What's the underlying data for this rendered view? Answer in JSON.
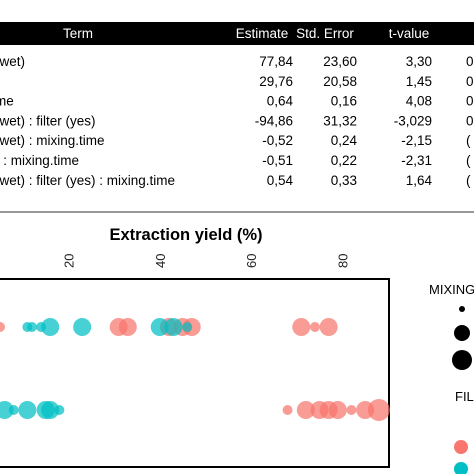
{
  "table": {
    "headers": [
      "Term",
      "Estimate",
      "Std. Error",
      "t-value",
      ""
    ],
    "rows": [
      {
        "term": "(wet)",
        "estimate": "77,84",
        "std_error": "23,60",
        "t_value": "3,30",
        "p": "0"
      },
      {
        "term": ")",
        "estimate": "29,76",
        "std_error": "20,58",
        "t_value": "1,45",
        "p": "0"
      },
      {
        "term": "me",
        "estimate": "0,64",
        "std_error": "0,16",
        "t_value": "4,08",
        "p": "0"
      },
      {
        "term": "(wet) : filter (yes)",
        "estimate": "-94,86",
        "std_error": "31,32",
        "t_value": "-3,029",
        "p": "0"
      },
      {
        "term": "(wet) : mixing.time",
        "estimate": "-0,52",
        "std_error": "0,24",
        "t_value": "-2,15",
        "p": "("
      },
      {
        "term": ") : mixing.time",
        "estimate": "-0,51",
        "std_error": "0,22",
        "t_value": "-2,31",
        "p": "("
      },
      {
        "term": "(wet) : filter (yes) : mixing.time",
        "estimate": "0,54",
        "std_error": "0,33",
        "t_value": "1,64",
        "p": "("
      }
    ]
  },
  "legend": {
    "mixing_title": "MIXING",
    "filter_title": "FIL"
  },
  "colors": {
    "salmon": "#F8766D",
    "teal": "#00BFC4",
    "header_bg": "#000000"
  },
  "chart_data": {
    "type": "scatter",
    "title": "",
    "xlabel": "Extraction yield (%)",
    "ylabel": "",
    "xlim": [
      5,
      90
    ],
    "xticks": [
      "20",
      "40",
      "60",
      "80"
    ],
    "legend_position": "right",
    "series": [
      {
        "color_key": "salmon",
        "points": [
          {
            "x": 5,
            "row": 1,
            "size": 1
          },
          {
            "x": 31,
            "row": 1,
            "size": 2
          },
          {
            "x": 33,
            "row": 1,
            "size": 2
          },
          {
            "x": 42,
            "row": 1,
            "size": 2
          },
          {
            "x": 45,
            "row": 1,
            "size": 2
          },
          {
            "x": 47,
            "row": 1,
            "size": 2
          },
          {
            "x": 71,
            "row": 1,
            "size": 2
          },
          {
            "x": 74,
            "row": 1,
            "size": 1
          },
          {
            "x": 77,
            "row": 1,
            "size": 2
          },
          {
            "x": 68,
            "row": 2,
            "size": 1
          },
          {
            "x": 72,
            "row": 2,
            "size": 2
          },
          {
            "x": 75,
            "row": 2,
            "size": 2
          },
          {
            "x": 77,
            "row": 2,
            "size": 2
          },
          {
            "x": 79,
            "row": 2,
            "size": 2
          },
          {
            "x": 82,
            "row": 2,
            "size": 1
          },
          {
            "x": 85,
            "row": 2,
            "size": 2
          },
          {
            "x": 88,
            "row": 2,
            "size": 3
          }
        ]
      },
      {
        "color_key": "teal",
        "points": [
          {
            "x": 11,
            "row": 1,
            "size": 1
          },
          {
            "x": 12,
            "row": 1,
            "size": 1
          },
          {
            "x": 14,
            "row": 1,
            "size": 1
          },
          {
            "x": 16,
            "row": 1,
            "size": 2
          },
          {
            "x": 23,
            "row": 1,
            "size": 2
          },
          {
            "x": 40,
            "row": 1,
            "size": 2
          },
          {
            "x": 43,
            "row": 1,
            "size": 2
          },
          {
            "x": 46,
            "row": 1,
            "size": 1
          },
          {
            "x": 6,
            "row": 2,
            "size": 2
          },
          {
            "x": 8,
            "row": 2,
            "size": 1
          },
          {
            "x": 11,
            "row": 2,
            "size": 2
          },
          {
            "x": 15,
            "row": 2,
            "size": 2
          },
          {
            "x": 16,
            "row": 2,
            "size": 2
          },
          {
            "x": 18,
            "row": 2,
            "size": 1
          }
        ]
      }
    ]
  }
}
